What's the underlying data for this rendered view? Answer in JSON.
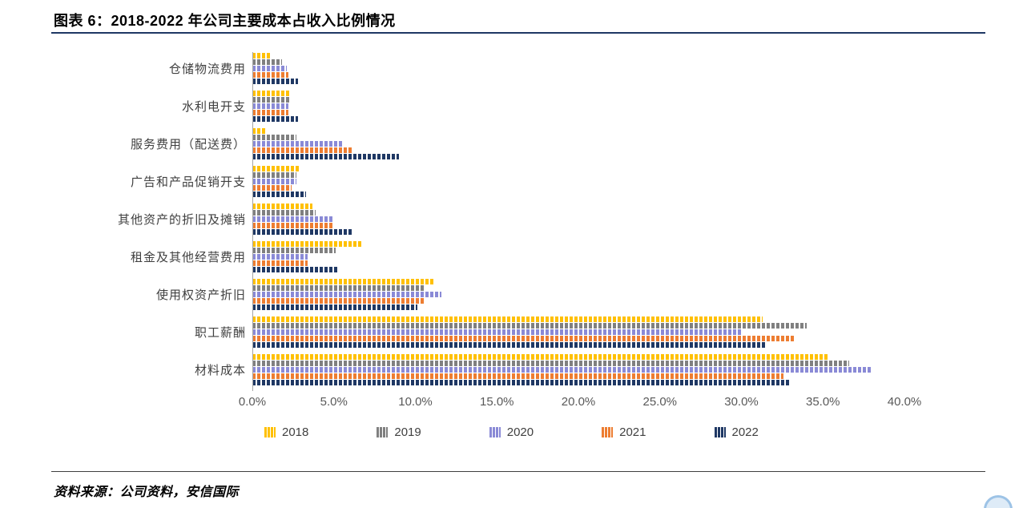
{
  "header": {
    "title": "图表 6：2018-2022 年公司主要成本占收入比例情况"
  },
  "footer": {
    "source": "资料来源：公司资料，安信国际"
  },
  "colors": {
    "title_rule": "#1F3864",
    "footer_rule": "#404040",
    "axis_line": "#A6A6A6",
    "tick_text": "#595959",
    "category_text": "#404040",
    "badge": "#9DC3E6"
  },
  "chart_data": {
    "type": "bar",
    "orientation": "horizontal",
    "unit": "%",
    "xlim": [
      0,
      40
    ],
    "x_ticks": [
      "0.0%",
      "5.0%",
      "10.0%",
      "15.0%",
      "20.0%",
      "25.0%",
      "30.0%",
      "35.0%",
      "40.0%"
    ],
    "grid": false,
    "legend_position": "bottom",
    "categories": [
      "仓储物流费用",
      "水利电开支",
      "服务费用（配送费）",
      "广告和产品促销开支",
      "其他资产的折旧及摊销",
      "租金及其他经营费用",
      "使用权资产折旧",
      "职工薪酬",
      "材料成本"
    ],
    "series": [
      {
        "name": "2018",
        "color": "#FFC000",
        "values": [
          1.2,
          2.3,
          0.9,
          2.9,
          3.7,
          6.7,
          11.1,
          31.3,
          35.3
        ]
      },
      {
        "name": "2019",
        "color": "#808080",
        "values": [
          1.8,
          2.3,
          2.7,
          2.7,
          3.9,
          5.1,
          10.5,
          34.0,
          36.6
        ]
      },
      {
        "name": "2020",
        "color": "#8A8AD6",
        "values": [
          2.1,
          2.2,
          5.6,
          2.7,
          5.0,
          3.4,
          11.6,
          30.0,
          38.0
        ]
      },
      {
        "name": "2021",
        "color": "#ED7D31",
        "values": [
          2.2,
          2.2,
          6.1,
          2.4,
          4.9,
          3.4,
          10.5,
          33.2,
          32.6
        ]
      },
      {
        "name": "2022",
        "color": "#1F3864",
        "values": [
          2.8,
          2.8,
          9.0,
          3.3,
          6.2,
          5.3,
          10.1,
          31.5,
          33.0
        ]
      }
    ]
  }
}
